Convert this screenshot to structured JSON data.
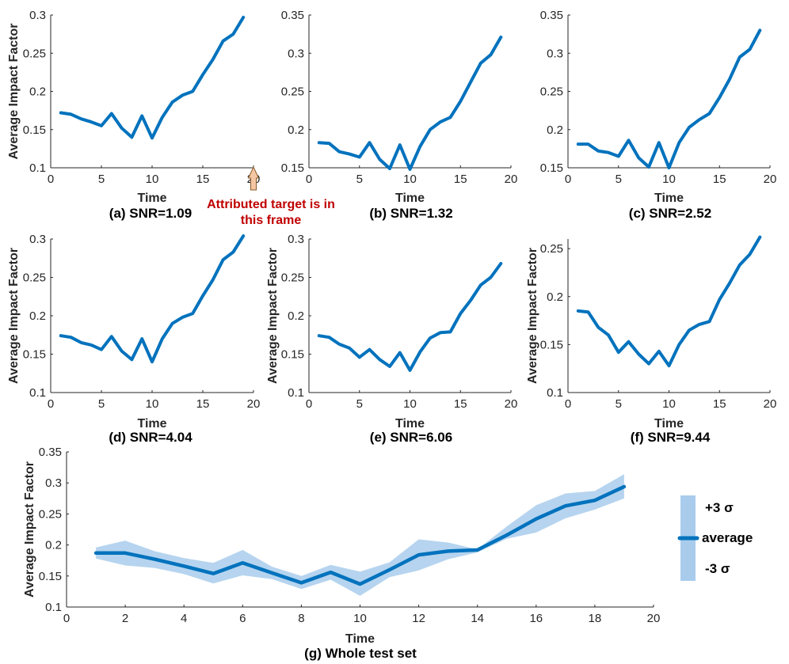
{
  "colors": {
    "line": "#0072BD",
    "band": "#A9CCEC",
    "annotation": "#C00000",
    "arrow_fill": "#F4C6A4",
    "axis": "#262626"
  },
  "annotation": {
    "line1": "Attributed target is in",
    "line2": "this frame"
  },
  "legend": {
    "upper": "+3 σ",
    "average": "average",
    "lower": "-3 σ"
  },
  "chart_data": [
    {
      "type": "line",
      "caption": "(a) SNR=1.09",
      "xlabel": "Time",
      "ylabel": "Average Impact Factor",
      "xlim": [
        0,
        20
      ],
      "ylim": [
        0.1,
        0.3
      ],
      "xticks": [
        "0",
        "5",
        "10",
        "15",
        "20"
      ],
      "yticks": [
        "0.1",
        "0.15",
        "0.2",
        "0.25",
        "0.3"
      ],
      "x": [
        1,
        2,
        3,
        4,
        5,
        6,
        7,
        8,
        9,
        10,
        11,
        12,
        13,
        14,
        15,
        16,
        17,
        18,
        19
      ],
      "y": [
        0.172,
        0.17,
        0.164,
        0.16,
        0.155,
        0.171,
        0.152,
        0.14,
        0.168,
        0.139,
        0.166,
        0.186,
        0.195,
        0.2,
        0.222,
        0.242,
        0.266,
        0.275,
        0.297
      ]
    },
    {
      "type": "line",
      "caption": "(b) SNR=1.32",
      "xlabel": "Time",
      "ylabel": "",
      "xlim": [
        0,
        20
      ],
      "ylim": [
        0.15,
        0.35
      ],
      "xticks": [
        "0",
        "5",
        "10",
        "15",
        "20"
      ],
      "yticks": [
        "0.15",
        "0.2",
        "0.25",
        "0.3",
        "0.35"
      ],
      "x": [
        1,
        2,
        3,
        4,
        5,
        6,
        7,
        8,
        9,
        10,
        11,
        12,
        13,
        14,
        15,
        16,
        17,
        18,
        19
      ],
      "y": [
        0.183,
        0.182,
        0.171,
        0.168,
        0.164,
        0.183,
        0.161,
        0.149,
        0.18,
        0.148,
        0.178,
        0.2,
        0.21,
        0.216,
        0.237,
        0.262,
        0.287,
        0.298,
        0.321
      ]
    },
    {
      "type": "line",
      "caption": "(c) SNR=2.52",
      "xlabel": "Time",
      "ylabel": "",
      "xlim": [
        0,
        20
      ],
      "ylim": [
        0.15,
        0.35
      ],
      "xticks": [
        "0",
        "5",
        "10",
        "15",
        "20"
      ],
      "yticks": [
        "0.15",
        "0.2",
        "0.25",
        "0.3",
        "0.35"
      ],
      "x": [
        1,
        2,
        3,
        4,
        5,
        6,
        7,
        8,
        9,
        10,
        11,
        12,
        13,
        14,
        15,
        16,
        17,
        18,
        19
      ],
      "y": [
        0.181,
        0.181,
        0.172,
        0.17,
        0.165,
        0.186,
        0.163,
        0.151,
        0.183,
        0.15,
        0.183,
        0.203,
        0.213,
        0.221,
        0.242,
        0.266,
        0.295,
        0.305,
        0.33
      ]
    },
    {
      "type": "line",
      "caption": "(d) SNR=4.04",
      "xlabel": "Time",
      "ylabel": "Average Impact Factor",
      "xlim": [
        0,
        20
      ],
      "ylim": [
        0.1,
        0.3
      ],
      "xticks": [
        "0",
        "5",
        "10",
        "15",
        "20"
      ],
      "yticks": [
        "0.1",
        "0.15",
        "0.2",
        "0.25",
        "0.3"
      ],
      "x": [
        1,
        2,
        3,
        4,
        5,
        6,
        7,
        8,
        9,
        10,
        11,
        12,
        13,
        14,
        15,
        16,
        17,
        18,
        19
      ],
      "y": [
        0.174,
        0.172,
        0.165,
        0.162,
        0.156,
        0.173,
        0.154,
        0.143,
        0.17,
        0.14,
        0.17,
        0.19,
        0.198,
        0.203,
        0.226,
        0.247,
        0.273,
        0.283,
        0.304
      ]
    },
    {
      "type": "line",
      "caption": "(e) SNR=6.06",
      "xlabel": "Time",
      "ylabel": "Average Impact Factor",
      "xlim": [
        0,
        20
      ],
      "ylim": [
        0.1,
        0.3
      ],
      "xticks": [
        "0",
        "5",
        "10",
        "15",
        "20"
      ],
      "yticks": [
        "0.1",
        "0.15",
        "0.2",
        "0.25",
        "0.3"
      ],
      "x": [
        1,
        2,
        3,
        4,
        5,
        6,
        7,
        8,
        9,
        10,
        11,
        12,
        13,
        14,
        15,
        16,
        17,
        18,
        19
      ],
      "y": [
        0.174,
        0.172,
        0.163,
        0.158,
        0.146,
        0.156,
        0.143,
        0.134,
        0.152,
        0.129,
        0.153,
        0.171,
        0.178,
        0.179,
        0.203,
        0.22,
        0.24,
        0.25,
        0.268
      ]
    },
    {
      "type": "line",
      "caption": "(f) SNR=9.44",
      "xlabel": "Time",
      "ylabel": "Average Impact Factor",
      "xlim": [
        0,
        20
      ],
      "ylim": [
        0.1,
        0.26
      ],
      "xticks": [
        "0",
        "5",
        "10",
        "15",
        "20"
      ],
      "yticks": [
        "0.1",
        "0.15",
        "0.2",
        "0.25"
      ],
      "x": [
        1,
        2,
        3,
        4,
        5,
        6,
        7,
        8,
        9,
        10,
        11,
        12,
        13,
        14,
        15,
        16,
        17,
        18,
        19
      ],
      "y": [
        0.185,
        0.184,
        0.168,
        0.16,
        0.142,
        0.153,
        0.14,
        0.13,
        0.143,
        0.128,
        0.15,
        0.165,
        0.171,
        0.174,
        0.197,
        0.214,
        0.233,
        0.244,
        0.262
      ]
    },
    {
      "type": "area",
      "caption": "(g) Whole test set",
      "xlabel": "Time",
      "ylabel": "Average Impact Factor",
      "xlim": [
        0,
        20
      ],
      "ylim": [
        0.1,
        0.35
      ],
      "xticks": [
        "0",
        "2",
        "4",
        "6",
        "8",
        "10",
        "12",
        "14",
        "16",
        "18",
        "20"
      ],
      "yticks": [
        "0.1",
        "0.15",
        "0.2",
        "0.25",
        "0.3",
        "0.35"
      ],
      "x": [
        1,
        2,
        3,
        4,
        5,
        6,
        7,
        8,
        9,
        10,
        11,
        12,
        13,
        14,
        15,
        16,
        17,
        18,
        19
      ],
      "series": [
        {
          "name": "average",
          "values": [
            0.187,
            0.187,
            0.177,
            0.166,
            0.154,
            0.171,
            0.155,
            0.139,
            0.156,
            0.137,
            0.16,
            0.184,
            0.19,
            0.192,
            0.216,
            0.242,
            0.263,
            0.272,
            0.294
          ]
        },
        {
          "name": "+3 σ",
          "values": [
            0.196,
            0.207,
            0.19,
            0.179,
            0.171,
            0.192,
            0.165,
            0.15,
            0.168,
            0.157,
            0.172,
            0.209,
            0.204,
            0.193,
            0.23,
            0.264,
            0.283,
            0.287,
            0.314
          ]
        },
        {
          "name": "-3 σ",
          "values": [
            0.178,
            0.167,
            0.163,
            0.153,
            0.138,
            0.151,
            0.145,
            0.129,
            0.144,
            0.118,
            0.148,
            0.159,
            0.177,
            0.188,
            0.21,
            0.22,
            0.243,
            0.257,
            0.275
          ]
        }
      ]
    }
  ]
}
